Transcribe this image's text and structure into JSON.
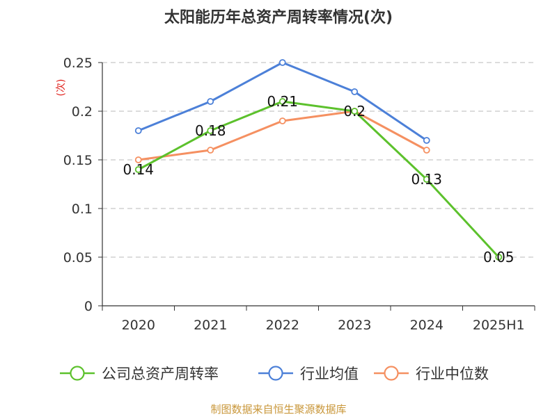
{
  "chart_data": {
    "type": "line",
    "title": "太阳能历年总资产周转率情况(次)",
    "ylabel": "(次)",
    "ylim": [
      0,
      0.25
    ],
    "yticks": [
      "0",
      "0.05",
      "0.1",
      "0.15",
      "0.2",
      "0.25"
    ],
    "categories": [
      "2020",
      "2021",
      "2022",
      "2023",
      "2024",
      "2025H1"
    ],
    "grid": true,
    "legend_position": "bottom",
    "series": [
      {
        "name": "公司总资产周转率",
        "color": "#5cc12c",
        "values": [
          0.14,
          0.18,
          0.21,
          0.2,
          0.13,
          0.05
        ],
        "labels": [
          "0.14",
          "0.18",
          "0.21",
          "0.2",
          "0.13",
          "0.05"
        ]
      },
      {
        "name": "行业均值",
        "color": "#4c80d8",
        "values": [
          0.18,
          0.21,
          0.25,
          0.22,
          0.17,
          null
        ]
      },
      {
        "name": "行业中位数",
        "color": "#f59061",
        "values": [
          0.15,
          0.16,
          0.19,
          0.2,
          0.16,
          null
        ]
      }
    ]
  },
  "source": "制图数据来自恒生聚源数据库"
}
